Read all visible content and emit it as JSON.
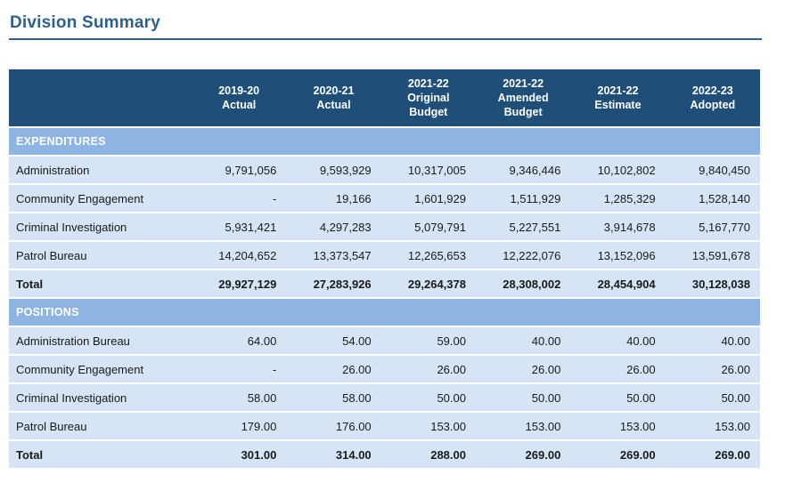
{
  "page": {
    "title": "Division Summary"
  },
  "colors": {
    "title_accent": "#2d5f8f",
    "header_bg": "#1f4e79",
    "header_text": "#ffffff",
    "section_bg": "#8db4e2",
    "row_bg": "#d7e4f5",
    "body_text": "#1a1a1a"
  },
  "table": {
    "columns": [
      "2019-20\nActual",
      "2020-21\nActual",
      "2021-22\nOriginal\nBudget",
      "2021-22\nAmended\nBudget",
      "2021-22\nEstimate",
      "2022-23\nAdopted"
    ],
    "sections": [
      {
        "label": "EXPENDITURES",
        "rows": [
          {
            "label": "Administration",
            "values": [
              "9,791,056",
              "9,593,929",
              "10,317,005",
              "9,346,446",
              "10,102,802",
              "9,840,450"
            ]
          },
          {
            "label": "Community Engagement",
            "values": [
              "-",
              "19,166",
              "1,601,929",
              "1,511,929",
              "1,285,329",
              "1,528,140"
            ]
          },
          {
            "label": "Criminal Investigation",
            "values": [
              "5,931,421",
              "4,297,283",
              "5,079,791",
              "5,227,551",
              "3,914,678",
              "5,167,770"
            ]
          },
          {
            "label": "Patrol Bureau",
            "values": [
              "14,204,652",
              "13,373,547",
              "12,265,653",
              "12,222,076",
              "13,152,096",
              "13,591,678"
            ]
          },
          {
            "label": "Total",
            "values": [
              "29,927,129",
              "27,283,926",
              "29,264,378",
              "28,308,002",
              "28,454,904",
              "30,128,038"
            ]
          }
        ]
      },
      {
        "label": "POSITIONS",
        "rows": [
          {
            "label": "Administration Bureau",
            "values": [
              "64.00",
              "54.00",
              "59.00",
              "40.00",
              "40.00",
              "40.00"
            ]
          },
          {
            "label": "Community Engagement",
            "values": [
              "-",
              "26.00",
              "26.00",
              "26.00",
              "26.00",
              "26.00"
            ]
          },
          {
            "label": "Criminal Investigation",
            "values": [
              "58.00",
              "58.00",
              "50.00",
              "50.00",
              "50.00",
              "50.00"
            ]
          },
          {
            "label": "Patrol Bureau",
            "values": [
              "179.00",
              "176.00",
              "153.00",
              "153.00",
              "153.00",
              "153.00"
            ]
          },
          {
            "label": "Total",
            "values": [
              "301.00",
              "314.00",
              "288.00",
              "269.00",
              "269.00",
              "269.00"
            ]
          }
        ]
      }
    ]
  }
}
